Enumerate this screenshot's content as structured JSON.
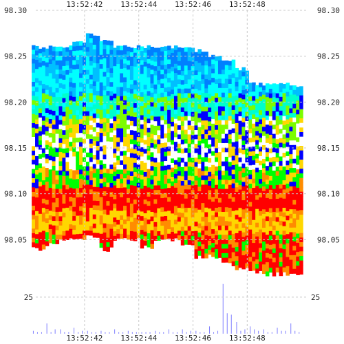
{
  "chart_data": {
    "type": "heatmap",
    "title": "",
    "xlabel": "",
    "ylabel": "",
    "grid": true,
    "x_range": [
      "13:52:40.2",
      "13:52:50.2"
    ],
    "x_ticks": [
      "13:52:42",
      "13:52:44",
      "13:52:46",
      "13:52:48"
    ],
    "y_range": [
      98.03,
      98.3
    ],
    "y_ticks": [
      "98.05",
      "98.10",
      "98.15",
      "98.20",
      "98.25",
      "98.30"
    ],
    "volume_tick": "25",
    "palette": [
      "#ff0000",
      "#ff8c00",
      "#ffd700",
      "#00ff00",
      "#7cfc00",
      "#00ffcc",
      "#00ffff",
      "#00bfff",
      "#0080ff",
      "#0000ff",
      "#9370db",
      "#ffffff"
    ],
    "columns": [
      {
        "t": "13:52:40.3",
        "y_max": 98.262,
        "y_min": 98.043,
        "vol": 2
      },
      {
        "t": "13:52:40.8",
        "y_max": 98.262,
        "y_min": 98.048,
        "vol": 7
      },
      {
        "t": "13:52:41.3",
        "y_max": 98.262,
        "y_min": 98.052,
        "vol": 3
      },
      {
        "t": "13:52:41.8",
        "y_max": 98.268,
        "y_min": 98.052,
        "vol": 4
      },
      {
        "t": "13:52:42.3",
        "y_max": 98.275,
        "y_min": 98.055,
        "vol": 2
      },
      {
        "t": "13:52:42.8",
        "y_max": 98.268,
        "y_min": 98.042,
        "vol": 2
      },
      {
        "t": "13:52:43.3",
        "y_max": 98.262,
        "y_min": 98.052,
        "vol": 3
      },
      {
        "t": "13:52:43.8",
        "y_max": 98.262,
        "y_min": 98.052,
        "vol": 2
      },
      {
        "t": "13:52:44.3",
        "y_max": 98.262,
        "y_min": 98.044,
        "vol": 1
      },
      {
        "t": "13:52:44.8",
        "y_max": 98.262,
        "y_min": 98.052,
        "vol": 2
      },
      {
        "t": "13:52:45.3",
        "y_max": 98.262,
        "y_min": 98.052,
        "vol": 3
      },
      {
        "t": "13:52:45.8",
        "y_max": 98.262,
        "y_min": 98.046,
        "vol": 3
      },
      {
        "t": "13:52:46.3",
        "y_max": 98.258,
        "y_min": 98.034,
        "vol": 2
      },
      {
        "t": "13:52:46.8",
        "y_max": 98.252,
        "y_min": 98.034,
        "vol": 5
      },
      {
        "t": "13:52:47.3",
        "y_max": 98.247,
        "y_min": 98.026,
        "vol": 34
      },
      {
        "t": "13:52:47.8",
        "y_max": 98.238,
        "y_min": 98.022,
        "vol": 8
      },
      {
        "t": "13:52:48.3",
        "y_max": 98.222,
        "y_min": 98.018,
        "vol": 5
      },
      {
        "t": "13:52:48.8",
        "y_max": 98.222,
        "y_min": 98.015,
        "vol": 3
      },
      {
        "t": "13:52:49.3",
        "y_max": 98.222,
        "y_min": 98.015,
        "vol": 4
      },
      {
        "t": "13:52:49.8",
        "y_max": 98.22,
        "y_min": 98.015,
        "vol": 7
      }
    ]
  }
}
